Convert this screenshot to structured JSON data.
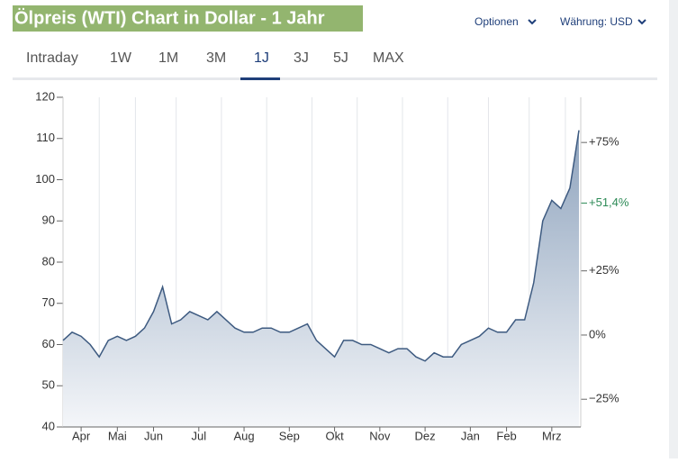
{
  "header": {
    "title": "Ölpreis (WTI) Chart in Dollar - 1 Jahr",
    "options": "Optionen",
    "currency": "Währung: USD"
  },
  "tabs": [
    "Intraday",
    "1W",
    "1M",
    "3M",
    "1J",
    "3J",
    "5J",
    "MAX"
  ],
  "active_tab": "1J",
  "chart_data": {
    "type": "area",
    "categories": [
      null,
      null,
      "Apr",
      null,
      null,
      null,
      "Mai",
      null,
      null,
      null,
      "Jun",
      null,
      null,
      null,
      null,
      "Jul",
      null,
      null,
      null,
      null,
      "Aug",
      null,
      null,
      null,
      null,
      "Sep",
      null,
      null,
      null,
      null,
      "Okt",
      null,
      null,
      null,
      null,
      "Nov",
      null,
      null,
      null,
      null,
      "Dez",
      null,
      null,
      null,
      null,
      "Jan",
      null,
      null,
      null,
      "Feb",
      null,
      null,
      null,
      null,
      "Mrz",
      null,
      null,
      null
    ],
    "series": [
      {
        "name": "WTI",
        "color": "#3d5a80",
        "values": [
          61,
          63,
          62,
          60,
          57,
          61,
          62,
          61,
          62,
          64,
          68,
          74,
          65,
          66,
          68,
          67,
          66,
          68,
          66,
          64,
          63,
          63,
          64,
          64,
          63,
          63,
          64,
          65,
          61,
          59,
          57,
          61,
          61,
          60,
          60,
          59,
          58,
          59,
          59,
          57,
          56,
          58,
          57,
          57,
          60,
          61,
          62,
          64,
          63,
          63,
          66,
          66,
          75,
          90,
          95,
          93,
          98,
          112
        ]
      }
    ],
    "ylim": [
      40,
      120
    ],
    "yticks": [
      40,
      50,
      60,
      70,
      80,
      90,
      100,
      110,
      120
    ],
    "y2lim": [
      -35.8,
      92.6
    ],
    "y2ticks": [
      {
        "value": 75,
        "label": "+75%"
      },
      {
        "value": 25,
        "label": "+25%"
      },
      {
        "value": 0,
        "label": "0%"
      },
      {
        "value": -25,
        "label": "−25%"
      }
    ],
    "annotations": [
      {
        "value": 51.4,
        "label": "+51,4%",
        "color": "#2e8b57"
      }
    ],
    "grid": true
  }
}
